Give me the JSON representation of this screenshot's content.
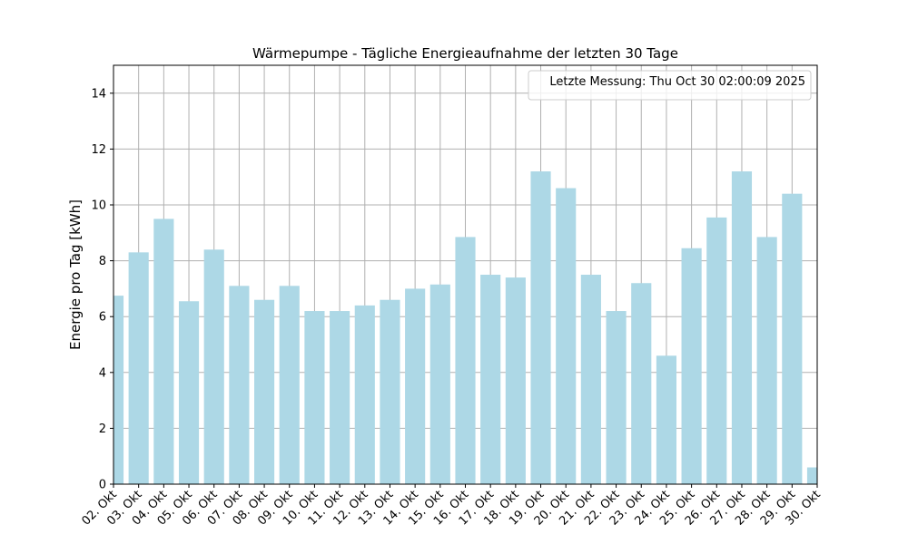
{
  "chart_data": {
    "type": "bar",
    "title": "Wärmepumpe - Tägliche Energieaufnahme der letzten 30 Tage",
    "xlabel": "",
    "ylabel": "Energie pro Tag [kWh]",
    "ylim": [
      0,
      15
    ],
    "yticks": [
      "0",
      "2",
      "4",
      "6",
      "8",
      "10",
      "12",
      "14"
    ],
    "grid": true,
    "legend_placement": "top-right",
    "annotation": "Letzte Messung: Thu Oct 30 02:00:09 2025",
    "bar_color": "#add8e6",
    "x_ticks": [
      "02. Okt",
      "03. Okt",
      "04. Okt",
      "05. Okt",
      "06. Okt",
      "07. Okt",
      "08. Okt",
      "09. Okt",
      "10. Okt",
      "11. Okt",
      "12. Okt",
      "13. Okt",
      "14. Okt",
      "15. Okt",
      "16. Okt",
      "17. Okt",
      "18. Okt",
      "19. Okt",
      "20. Okt",
      "21. Okt",
      "22. Okt",
      "23. Okt",
      "24. Okt",
      "25. Okt",
      "26. Okt",
      "27. Okt",
      "28. Okt",
      "29. Okt",
      "30. Okt"
    ],
    "bars": [
      {
        "day": "02. Okt",
        "value": 6.75
      },
      {
        "day": "03. Okt",
        "value": 8.3
      },
      {
        "day": "04. Okt",
        "value": 9.5
      },
      {
        "day": "05. Okt",
        "value": 6.55
      },
      {
        "day": "06. Okt",
        "value": 8.4
      },
      {
        "day": "07. Okt",
        "value": 7.1
      },
      {
        "day": "08. Okt",
        "value": 6.6
      },
      {
        "day": "09. Okt",
        "value": 7.1
      },
      {
        "day": "10. Okt",
        "value": 6.2
      },
      {
        "day": "11. Okt",
        "value": 6.2
      },
      {
        "day": "12. Okt",
        "value": 6.4
      },
      {
        "day": "13. Okt",
        "value": 6.6
      },
      {
        "day": "14. Okt",
        "value": 7.0
      },
      {
        "day": "15. Okt",
        "value": 7.15
      },
      {
        "day": "16. Okt",
        "value": 8.85
      },
      {
        "day": "17. Okt",
        "value": 7.5
      },
      {
        "day": "18. Okt",
        "value": 7.4
      },
      {
        "day": "19. Okt",
        "value": 11.2
      },
      {
        "day": "20. Okt",
        "value": 10.6
      },
      {
        "day": "21. Okt",
        "value": 7.5
      },
      {
        "day": "22. Okt",
        "value": 6.2
      },
      {
        "day": "23. Okt",
        "value": 7.2
      },
      {
        "day": "24. Okt",
        "value": 4.6
      },
      {
        "day": "25. Okt",
        "value": 8.45
      },
      {
        "day": "26. Okt",
        "value": 9.55
      },
      {
        "day": "27. Okt",
        "value": 11.2
      },
      {
        "day": "28. Okt",
        "value": 8.85
      },
      {
        "day": "29. Okt",
        "value": 10.4
      },
      {
        "day": "30. Okt",
        "value": 0.6
      }
    ]
  }
}
